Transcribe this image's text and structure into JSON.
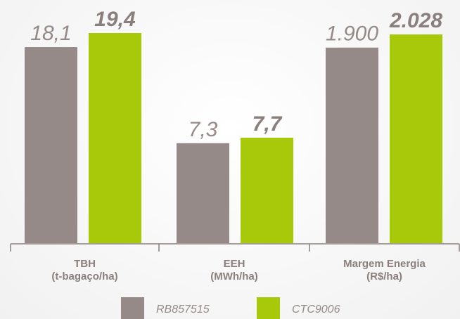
{
  "chart_data": {
    "type": "bar",
    "categories": [
      [
        "TBH",
        "(t-bagaço/ha)"
      ],
      [
        "EEH",
        "(MWh/ha)"
      ],
      [
        "Margem Energia",
        "(R$/ha)"
      ]
    ],
    "series": [
      {
        "name": "RB857515",
        "color": "#958a87",
        "values": [
          18.1,
          7.3,
          1900
        ],
        "value_labels": [
          "18,1",
          "7,3",
          "1.900"
        ]
      },
      {
        "name": "CTC9006",
        "color": "#a8c80a",
        "values": [
          19.4,
          7.7,
          2028
        ],
        "value_labels": [
          "19,4",
          "7,7",
          "2.028"
        ]
      }
    ]
  }
}
